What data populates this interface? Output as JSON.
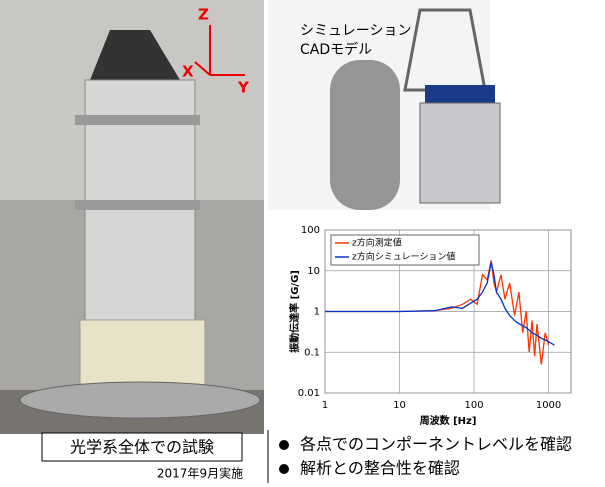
{
  "photo": {
    "axis_labels": [
      "Z",
      "X",
      "Y"
    ],
    "caption": "光学系全体での試験",
    "date": "2017年9月実施"
  },
  "cad": {
    "label_lines": [
      "シミュレーション",
      "CADモデル"
    ]
  },
  "chart_data": {
    "type": "line",
    "xlabel": "周波数 [Hz]",
    "ylabel": "振動伝達率 [G/G]",
    "x": [
      1,
      10,
      30,
      50,
      70,
      90,
      110,
      130,
      150,
      170,
      185,
      200,
      230,
      260,
      300,
      350,
      400,
      450,
      500,
      550,
      600,
      650,
      700,
      800,
      900,
      1000,
      1200
    ],
    "series": [
      {
        "name": "z方向測定値",
        "color": "#ff3300",
        "values": [
          1,
          1,
          1.05,
          1.2,
          1.5,
          2,
          1.5,
          8,
          6,
          18,
          5,
          3,
          8,
          2,
          5,
          0.8,
          3,
          0.3,
          1.0,
          0.1,
          0.6,
          0.08,
          0.5,
          0.05,
          0.3,
          0.15,
          null
        ]
      },
      {
        "name": "z方向シミュレーション値",
        "color": "#0033cc",
        "values": [
          1,
          1,
          1.05,
          1.3,
          1.2,
          1.6,
          2.0,
          3,
          5,
          16,
          8,
          3,
          2,
          1.2,
          0.8,
          0.6,
          0.5,
          0.45,
          0.4,
          0.35,
          0.3,
          0.28,
          0.26,
          0.22,
          0.2,
          0.18,
          0.15
        ]
      }
    ],
    "xlim": [
      1,
      2000
    ],
    "ylim": [
      0.01,
      100
    ],
    "xticks": [
      1,
      10,
      100,
      1000
    ],
    "yticks": [
      0.01,
      0.1,
      1,
      10,
      100
    ],
    "log_x": true,
    "log_y": true,
    "grid": true,
    "legend": "upper left"
  },
  "bullets": [
    "各点でのコンポーネントレベルを確認",
    "解析との整合性を確認"
  ]
}
